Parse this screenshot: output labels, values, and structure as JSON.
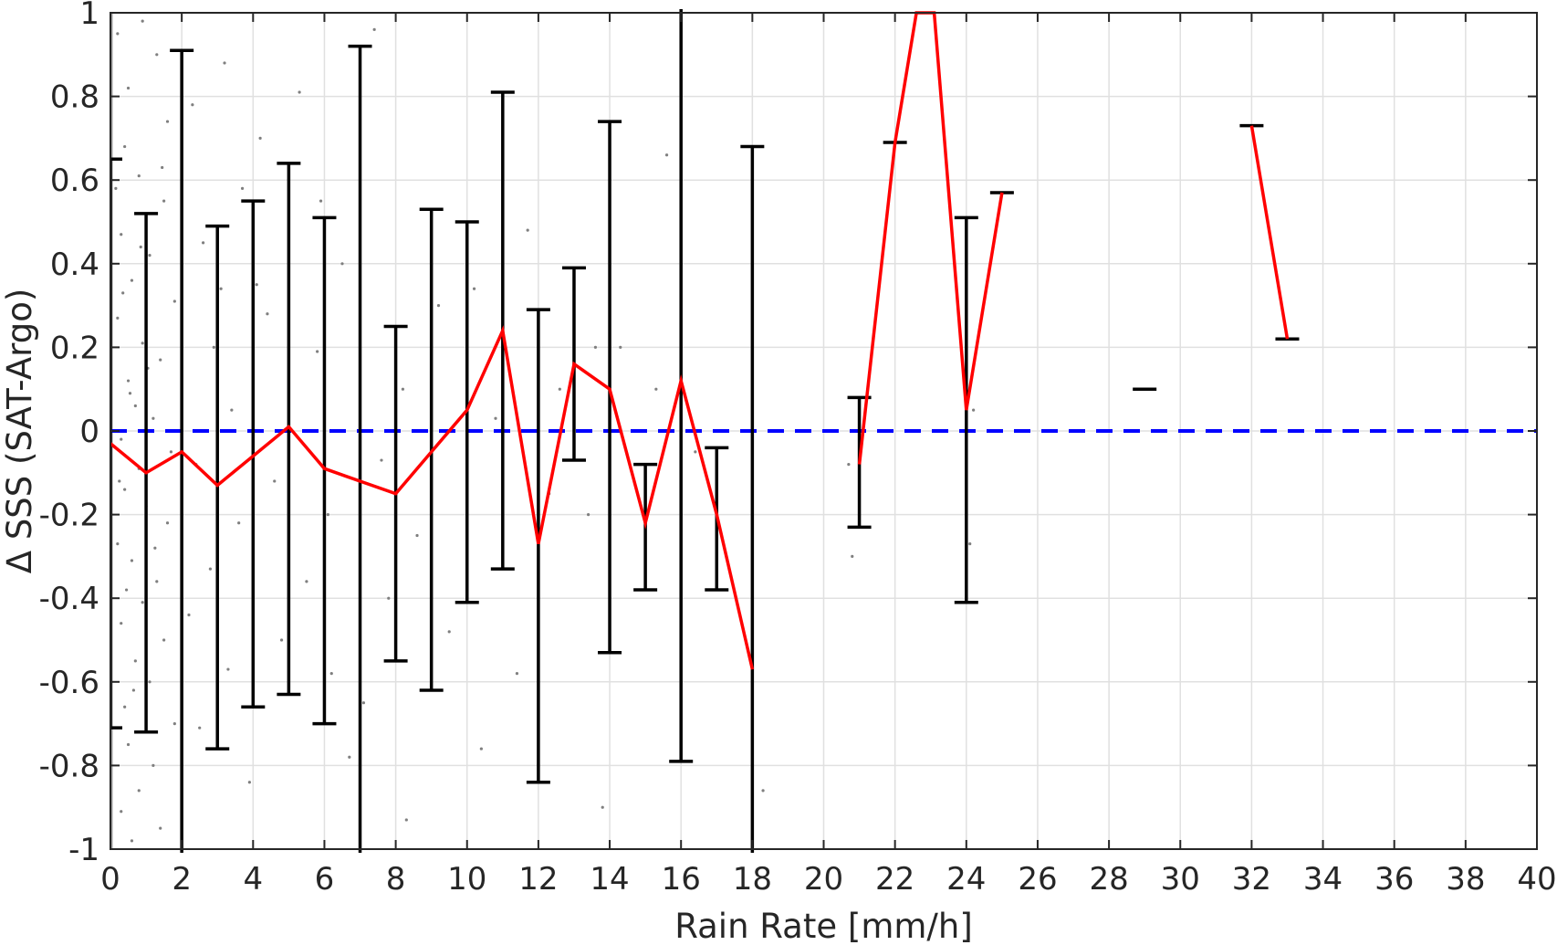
{
  "chart_data": {
    "type": "line",
    "xlabel": "Rain Rate [mm/h]",
    "ylabel": "Δ SSS (SAT-Argo)",
    "xlim": [
      0,
      40
    ],
    "ylim": [
      -1,
      1
    ],
    "xticks": [
      0,
      2,
      4,
      6,
      8,
      10,
      12,
      14,
      16,
      18,
      20,
      22,
      24,
      26,
      28,
      30,
      32,
      34,
      36,
      38,
      40
    ],
    "yticks": [
      1,
      0.8,
      0.6,
      0.4,
      0.2,
      0,
      -0.2,
      -0.4,
      -0.6,
      -0.8,
      -1
    ],
    "ytick_labels": [
      "1",
      "0.8",
      "0.6",
      "0.4",
      "0.2",
      "0",
      "-0.2",
      "-0.4",
      "-0.6",
      "-0.8",
      "-1"
    ],
    "grid": true,
    "colors": {
      "mean_line": "#ff0000",
      "error_bars": "#000000",
      "zero_line": "#0000ff",
      "scatter": "#7f7f7f",
      "grid": "#e0e0e0"
    },
    "zero_line": {
      "y": 0,
      "style": "dashed"
    },
    "mean_series": [
      [
        {
          "x": 0,
          "y": -0.03
        },
        {
          "x": 1,
          "y": -0.1
        },
        {
          "x": 2,
          "y": -0.05
        },
        {
          "x": 3,
          "y": -0.13
        },
        {
          "x": 4,
          "y": -0.06
        },
        {
          "x": 5,
          "y": 0.01
        },
        {
          "x": 6,
          "y": -0.09
        },
        {
          "x": 7,
          "y": -0.12
        },
        {
          "x": 8,
          "y": -0.15
        },
        {
          "x": 9,
          "y": -0.05
        },
        {
          "x": 10,
          "y": 0.05
        },
        {
          "x": 11,
          "y": 0.24
        },
        {
          "x": 12,
          "y": -0.27
        },
        {
          "x": 13,
          "y": 0.16
        },
        {
          "x": 14,
          "y": 0.1
        },
        {
          "x": 15,
          "y": -0.22
        },
        {
          "x": 16,
          "y": 0.12
        },
        {
          "x": 17,
          "y": -0.2
        },
        {
          "x": 18,
          "y": -0.57
        }
      ],
      [
        {
          "x": 21,
          "y": -0.08
        },
        {
          "x": 22,
          "y": 0.69
        },
        {
          "x": 22.6,
          "y": 1.0
        },
        {
          "x": 23.1,
          "y": 1.0
        },
        {
          "x": 24,
          "y": 0.05
        },
        {
          "x": 25,
          "y": 0.57
        }
      ],
      [
        {
          "x": 32,
          "y": 0.73
        },
        {
          "x": 33,
          "y": 0.22
        }
      ]
    ],
    "error_bars": [
      {
        "x": 0,
        "low": -0.71,
        "high": 0.65
      },
      {
        "x": 1,
        "low": -0.72,
        "high": 0.52
      },
      {
        "x": 2,
        "low": -1.1,
        "high": 0.91
      },
      {
        "x": 3,
        "low": -0.76,
        "high": 0.49
      },
      {
        "x": 4,
        "low": -0.66,
        "high": 0.55
      },
      {
        "x": 5,
        "low": -0.63,
        "high": 0.64
      },
      {
        "x": 6,
        "low": -0.7,
        "high": 0.51
      },
      {
        "x": 7,
        "low": -1.1,
        "high": 0.92
      },
      {
        "x": 8,
        "low": -0.55,
        "high": 0.25
      },
      {
        "x": 9,
        "low": -0.62,
        "high": 0.53
      },
      {
        "x": 10,
        "low": -0.41,
        "high": 0.5
      },
      {
        "x": 11,
        "low": -0.33,
        "high": 0.81
      },
      {
        "x": 12,
        "low": -0.84,
        "high": 0.29
      },
      {
        "x": 13,
        "low": -0.07,
        "high": 0.39
      },
      {
        "x": 14,
        "low": -0.53,
        "high": 0.74
      },
      {
        "x": 15,
        "low": -0.38,
        "high": -0.08
      },
      {
        "x": 16,
        "low": -0.79,
        "high": 1.1
      },
      {
        "x": 17,
        "low": -0.38,
        "high": -0.04
      },
      {
        "x": 18,
        "low": -1.1,
        "high": 0.68
      },
      {
        "x": 21,
        "low": -0.23,
        "high": 0.08
      },
      {
        "x": 22,
        "low": 0.69,
        "high": 0.69
      },
      {
        "x": 24,
        "low": -0.41,
        "high": 0.51
      },
      {
        "x": 25,
        "low": 0.57,
        "high": 0.57
      },
      {
        "x": 29,
        "low": 0.1,
        "high": 0.1
      },
      {
        "x": 32,
        "low": 0.73,
        "high": 0.73
      },
      {
        "x": 33,
        "low": 0.22,
        "high": 0.22
      }
    ],
    "scatter_points": [
      {
        "x": 0.2,
        "y": 0.95
      },
      {
        "x": 0.5,
        "y": 0.82
      },
      {
        "x": 0.9,
        "y": 0.98
      },
      {
        "x": 1.3,
        "y": 0.9
      },
      {
        "x": 1.6,
        "y": 0.74
      },
      {
        "x": 0.4,
        "y": 0.68
      },
      {
        "x": 0.8,
        "y": 0.61
      },
      {
        "x": 1.5,
        "y": 0.55
      },
      {
        "x": 0.3,
        "y": 0.47
      },
      {
        "x": 1.1,
        "y": 0.42
      },
      {
        "x": 0.6,
        "y": 0.36
      },
      {
        "x": 1.8,
        "y": 0.31
      },
      {
        "x": 0.2,
        "y": 0.27
      },
      {
        "x": 0.9,
        "y": 0.21
      },
      {
        "x": 1.4,
        "y": 0.17
      },
      {
        "x": 0.5,
        "y": 0.12
      },
      {
        "x": 0.7,
        "y": 0.06
      },
      {
        "x": 1.2,
        "y": 0.03
      },
      {
        "x": 0.3,
        "y": -0.02
      },
      {
        "x": 1.7,
        "y": -0.05
      },
      {
        "x": 0.8,
        "y": -0.09
      },
      {
        "x": 0.4,
        "y": -0.14
      },
      {
        "x": 1.0,
        "y": -0.18
      },
      {
        "x": 1.6,
        "y": -0.22
      },
      {
        "x": 0.2,
        "y": -0.27
      },
      {
        "x": 0.6,
        "y": -0.31
      },
      {
        "x": 1.3,
        "y": -0.36
      },
      {
        "x": 0.9,
        "y": -0.41
      },
      {
        "x": 0.3,
        "y": -0.46
      },
      {
        "x": 1.5,
        "y": -0.5
      },
      {
        "x": 0.7,
        "y": -0.55
      },
      {
        "x": 1.1,
        "y": -0.6
      },
      {
        "x": 0.4,
        "y": -0.66
      },
      {
        "x": 1.8,
        "y": -0.7
      },
      {
        "x": 0.5,
        "y": -0.75
      },
      {
        "x": 1.2,
        "y": -0.8
      },
      {
        "x": 0.8,
        "y": -0.86
      },
      {
        "x": 0.3,
        "y": -0.91
      },
      {
        "x": 1.4,
        "y": -0.95
      },
      {
        "x": 0.6,
        "y": -0.98
      },
      {
        "x": 0.15,
        "y": 0.58
      },
      {
        "x": 0.35,
        "y": 0.33
      },
      {
        "x": 0.55,
        "y": 0.09
      },
      {
        "x": 0.25,
        "y": -0.12
      },
      {
        "x": 0.45,
        "y": -0.38
      },
      {
        "x": 0.65,
        "y": -0.62
      },
      {
        "x": 0.85,
        "y": 0.44
      },
      {
        "x": 1.05,
        "y": 0.15
      },
      {
        "x": 1.25,
        "y": -0.28
      },
      {
        "x": 1.45,
        "y": 0.63
      },
      {
        "x": 2.3,
        "y": 0.78
      },
      {
        "x": 2.6,
        "y": 0.45
      },
      {
        "x": 2.9,
        "y": 0.2
      },
      {
        "x": 2.4,
        "y": -0.08
      },
      {
        "x": 2.8,
        "y": -0.33
      },
      {
        "x": 3.3,
        "y": -0.57
      },
      {
        "x": 2.5,
        "y": -0.71
      },
      {
        "x": 3.1,
        "y": 0.34
      },
      {
        "x": 3.4,
        "y": 0.05
      },
      {
        "x": 2.2,
        "y": -0.44
      },
      {
        "x": 3.7,
        "y": 0.58
      },
      {
        "x": 3.6,
        "y": -0.22
      },
      {
        "x": 3.9,
        "y": -0.84
      },
      {
        "x": 4.4,
        "y": 0.28
      },
      {
        "x": 4.6,
        "y": -0.12
      },
      {
        "x": 4.8,
        "y": -0.5
      },
      {
        "x": 3.2,
        "y": 0.88
      },
      {
        "x": 4.2,
        "y": 0.7
      },
      {
        "x": 5.3,
        "y": 0.81
      },
      {
        "x": 5.5,
        "y": -0.36
      },
      {
        "x": 5.8,
        "y": 0.19
      },
      {
        "x": 6.2,
        "y": -0.58
      },
      {
        "x": 6.5,
        "y": 0.4
      },
      {
        "x": 6.7,
        "y": -0.78
      },
      {
        "x": 6.1,
        "y": -0.2
      },
      {
        "x": 7.1,
        "y": -0.65
      },
      {
        "x": 7.4,
        "y": 0.96
      },
      {
        "x": 7.6,
        "y": -0.07
      },
      {
        "x": 7.8,
        "y": -0.4
      },
      {
        "x": 8.2,
        "y": 0.1
      },
      {
        "x": 8.3,
        "y": -0.93
      },
      {
        "x": 8.6,
        "y": -0.25
      },
      {
        "x": 9.2,
        "y": 0.3
      },
      {
        "x": 9.5,
        "y": -0.48
      },
      {
        "x": 10.2,
        "y": 0.34
      },
      {
        "x": 10.4,
        "y": -0.76
      },
      {
        "x": 10.8,
        "y": 0.03
      },
      {
        "x": 11.4,
        "y": -0.58
      },
      {
        "x": 11.7,
        "y": 0.48
      },
      {
        "x": 12.3,
        "y": -0.15
      },
      {
        "x": 12.6,
        "y": 0.1
      },
      {
        "x": 13.4,
        "y": -0.2
      },
      {
        "x": 13.6,
        "y": 0.2
      },
      {
        "x": 13.8,
        "y": -0.9
      },
      {
        "x": 14.3,
        "y": 0.2
      },
      {
        "x": 15.6,
        "y": 0.66
      },
      {
        "x": 15.3,
        "y": 0.1
      },
      {
        "x": 16.4,
        "y": -0.05
      },
      {
        "x": 18.3,
        "y": -0.86
      },
      {
        "x": 20.8,
        "y": -0.3
      },
      {
        "x": 20.7,
        "y": -0.08
      },
      {
        "x": 24.1,
        "y": -0.27
      },
      {
        "x": 24.2,
        "y": 0.05
      },
      {
        "x": 5.9,
        "y": 0.55
      },
      {
        "x": 4.1,
        "y": 0.35
      }
    ]
  }
}
